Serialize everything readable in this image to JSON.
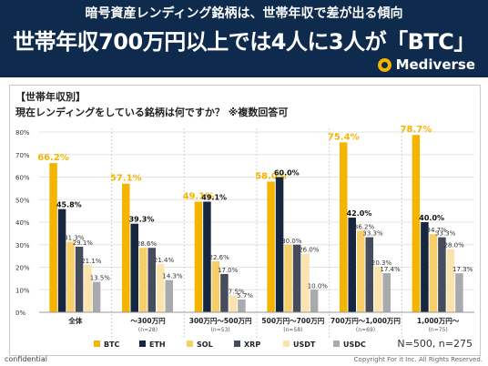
{
  "header": {
    "subtitle": "暗号資産レンディング銘柄は、世帯年収で差が出る傾向",
    "title": "世帯年収700万円以上では4人に3人が「BTC」",
    "brand": "Mediverse"
  },
  "section_label": "【世帯年収別】",
  "question": "現在レンディングをしている銘柄は何ですか？ ※複数回答可",
  "sample_note": "N=500, n=275",
  "footer": {
    "left": "confidential",
    "right": "Copyright For it Inc. All Rights Reserved."
  },
  "colors": {
    "header_bg": "#0e2a4c",
    "accent": "#f5b400"
  },
  "chart_data": {
    "type": "bar",
    "ylim": [
      0,
      80
    ],
    "y_ticks": [
      "0%",
      "10%",
      "20%",
      "30%",
      "40%",
      "50%",
      "60%",
      "70%",
      "80%"
    ],
    "categories": [
      "全体",
      "〜300万円",
      "300万円〜500万円",
      "500万円〜700万円",
      "700万円〜1,000万円",
      "1,000万円〜"
    ],
    "category_notes": [
      "",
      "(n=28)",
      "(n=53)",
      "(n=58)",
      "(n=69)",
      "(n=75)"
    ],
    "series": [
      {
        "name": "BTC",
        "color": "#f5b400",
        "values": [
          66.2,
          57.1,
          49.1,
          58.0,
          75.4,
          78.7
        ],
        "labels": [
          "66.2%",
          "57.1%",
          "49.1%",
          "58.0%",
          "75.4%",
          "78.7%"
        ]
      },
      {
        "name": "ETH",
        "color": "#16263f",
        "values": [
          45.8,
          39.3,
          49.1,
          60.0,
          42.0,
          40.0
        ],
        "labels": [
          "45.8%",
          "39.3%",
          "49.1%",
          "60.0%",
          "42.0%",
          "40.0%"
        ]
      },
      {
        "name": "SOL",
        "color": "#f7cf6a",
        "values": [
          31.3,
          28.6,
          22.6,
          30.0,
          36.2,
          34.7
        ],
        "labels": [
          "31.3%",
          "28.6%",
          "22.6%",
          "30.0%",
          "36.2%",
          "34.7%"
        ]
      },
      {
        "name": "XRP",
        "color": "#454d5c",
        "values": [
          29.1,
          28.6,
          17.0,
          30.0,
          33.3,
          33.3
        ],
        "labels": [
          "29.1%",
          "",
          "17.0%",
          "",
          "33.3%",
          "33.3%"
        ]
      },
      {
        "name": "USDT",
        "color": "#fbe3ad",
        "values": [
          21.1,
          21.4,
          7.5,
          26.0,
          20.3,
          28.0
        ],
        "labels": [
          "21.1%",
          "21.4%",
          "7.5%",
          "26.0%",
          "20.3%",
          "28.0%"
        ]
      },
      {
        "name": "USDC",
        "color": "#a9aaad",
        "values": [
          13.5,
          14.3,
          5.7,
          10.0,
          17.4,
          17.3
        ],
        "labels": [
          "13.5%",
          "14.3%",
          "5.7%",
          "10.0%",
          "17.4%",
          "17.3%"
        ]
      }
    ]
  }
}
